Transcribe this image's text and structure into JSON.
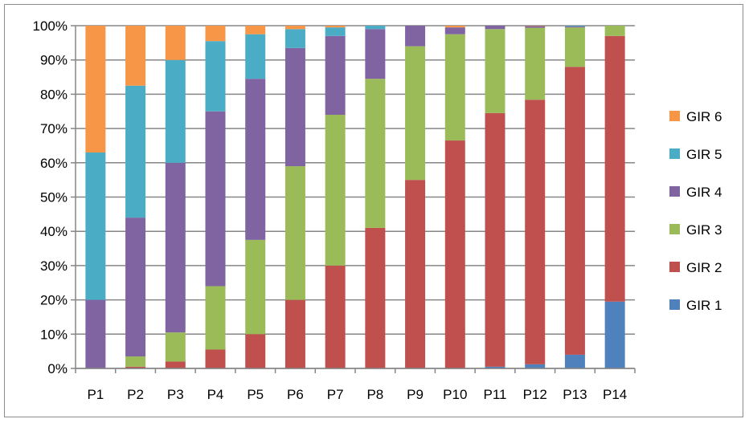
{
  "chart_data": {
    "type": "bar",
    "stacked": true,
    "percent": true,
    "categories": [
      "P1",
      "P2",
      "P3",
      "P4",
      "P5",
      "P6",
      "P7",
      "P8",
      "P9",
      "P10",
      "P11",
      "P12",
      "P13",
      "P14"
    ],
    "yticks": [
      "0%",
      "10%",
      "20%",
      "30%",
      "40%",
      "50%",
      "60%",
      "70%",
      "80%",
      "90%",
      "100%"
    ],
    "ylim": [
      0,
      100
    ],
    "grid": true,
    "legend_position": "right",
    "series": [
      {
        "name": "GIR 1",
        "color": "#4F81BD",
        "values": [
          0,
          0,
          0,
          0,
          0,
          0,
          0,
          0,
          0,
          0,
          0.5,
          1.2,
          4,
          19.5
        ]
      },
      {
        "name": "GIR 2",
        "color": "#C0504D",
        "values": [
          0,
          0.5,
          2,
          5.5,
          10,
          20,
          30,
          41,
          55,
          66.5,
          74,
          77.2,
          84,
          77.5
        ]
      },
      {
        "name": "GIR 3",
        "color": "#9BBB59",
        "values": [
          0,
          3,
          8.5,
          18.5,
          27.5,
          39,
          44,
          43.5,
          39,
          31,
          24.5,
          21,
          11.5,
          3
        ]
      },
      {
        "name": "GIR 4",
        "color": "#8064A2",
        "values": [
          20,
          40.5,
          49.5,
          51,
          47,
          34.5,
          23,
          14.5,
          6,
          2,
          1,
          0.5,
          0.3,
          0
        ]
      },
      {
        "name": "GIR 5",
        "color": "#4BACC6",
        "values": [
          43,
          38.5,
          30,
          20.5,
          13,
          5.5,
          2.5,
          1,
          0,
          0,
          0,
          0,
          0.2,
          0
        ]
      },
      {
        "name": "GIR 6",
        "color": "#F79646",
        "values": [
          37,
          17.5,
          10,
          4.5,
          2.5,
          1,
          0.5,
          0,
          0,
          0.5,
          0,
          0.1,
          0,
          0
        ]
      }
    ],
    "legend_order": [
      "GIR 6",
      "GIR 5",
      "GIR 4",
      "GIR 3",
      "GIR 2",
      "GIR 1"
    ]
  }
}
